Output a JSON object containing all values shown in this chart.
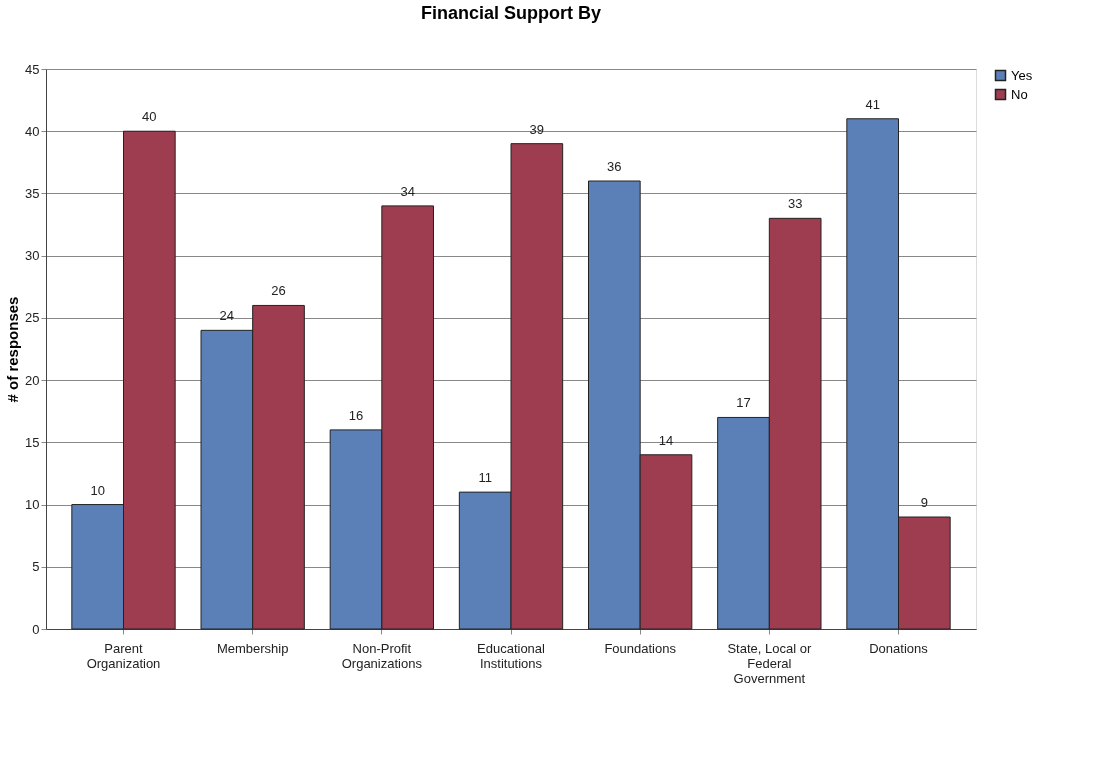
{
  "chart_data": {
    "type": "bar",
    "title": "Financial Support By",
    "ylabel": "# of responses",
    "categories": [
      "Parent Organization",
      "Membership",
      "Non-Profit Organizations",
      "Educational Institutions",
      "Foundations",
      "State, Local or Federal Government",
      "Donations"
    ],
    "series": [
      {
        "name": "Yes",
        "color": "#5b80b8",
        "values": [
          10,
          24,
          16,
          11,
          36,
          17,
          41
        ]
      },
      {
        "name": "No",
        "color": "#9e3d50",
        "values": [
          40,
          26,
          34,
          39,
          14,
          33,
          9
        ]
      }
    ],
    "ylim": [
      0,
      45
    ],
    "yticks": [
      0,
      5,
      10,
      15,
      20,
      25,
      30,
      35,
      40,
      45
    ],
    "grid": "y",
    "legend": "right",
    "data_labels": true
  }
}
